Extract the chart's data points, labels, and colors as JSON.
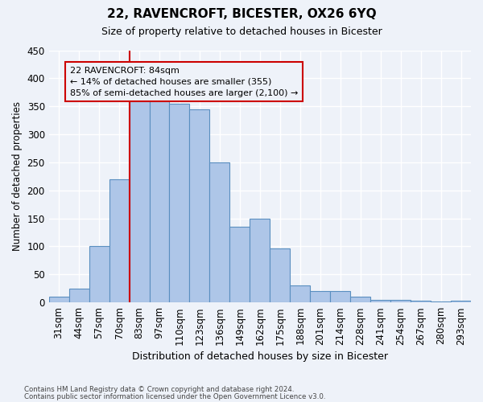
{
  "title": "22, RAVENCROFT, BICESTER, OX26 6YQ",
  "subtitle": "Size of property relative to detached houses in Bicester",
  "xlabel": "Distribution of detached houses by size in Bicester",
  "ylabel": "Number of detached properties",
  "categories": [
    "31sqm",
    "44sqm",
    "57sqm",
    "70sqm",
    "83sqm",
    "97sqm",
    "110sqm",
    "123sqm",
    "136sqm",
    "149sqm",
    "162sqm",
    "175sqm",
    "188sqm",
    "201sqm",
    "214sqm",
    "228sqm",
    "241sqm",
    "254sqm",
    "267sqm",
    "280sqm",
    "293sqm"
  ],
  "values": [
    10,
    25,
    100,
    220,
    360,
    365,
    355,
    345,
    250,
    135,
    150,
    97,
    30,
    20,
    20,
    10,
    5,
    5,
    3,
    2,
    3
  ],
  "bar_color": "#aec6e8",
  "bar_edge_color": "#5a8fc0",
  "ylim": [
    0,
    450
  ],
  "yticks": [
    0,
    50,
    100,
    150,
    200,
    250,
    300,
    350,
    400,
    450
  ],
  "property_bin_index": 4,
  "vline_color": "#cc0000",
  "annotation_text": "22 RAVENCROFT: 84sqm\n← 14% of detached houses are smaller (355)\n85% of semi-detached houses are larger (2,100) →",
  "footer1": "Contains HM Land Registry data © Crown copyright and database right 2024.",
  "footer2": "Contains public sector information licensed under the Open Government Licence v3.0.",
  "background_color": "#eef2f9",
  "grid_color": "#ffffff"
}
